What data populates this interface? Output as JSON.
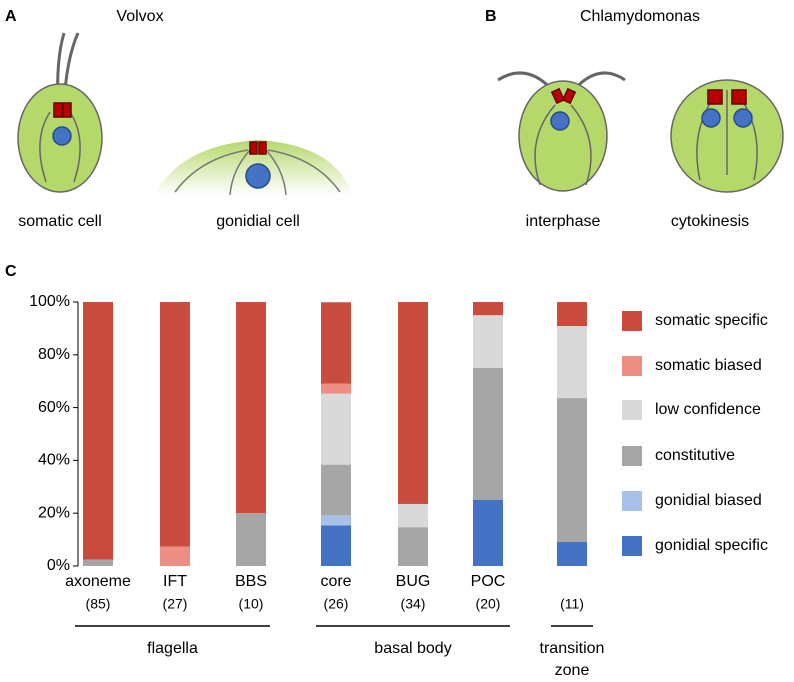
{
  "figure": {
    "panel_a": {
      "label": "A",
      "title": "Volvox",
      "cells": [
        "somatic cell",
        "gonidial cell"
      ]
    },
    "panel_b": {
      "label": "B",
      "title": "Chlamydomonas",
      "cells": [
        "interphase",
        "cytokinesis"
      ]
    },
    "panel_c_label": "C"
  },
  "chart_data": {
    "type": "bar",
    "stacked": true,
    "categories": [
      "axoneme",
      "IFT",
      "BBS",
      "core",
      "BUG",
      "POC",
      null
    ],
    "counts": [
      "(85)",
      "(27)",
      "(10)",
      "(26)",
      "(34)",
      "(20)",
      "(11)"
    ],
    "groups": [
      "flagella",
      "basal body",
      "transition zone"
    ],
    "series": [
      {
        "name": "gonidial specific",
        "color": "#4472c4",
        "values": [
          0,
          0,
          0,
          15.4,
          0,
          25,
          9.1
        ]
      },
      {
        "name": "gonidial biased",
        "color": "#a9c0e8",
        "values": [
          0,
          0,
          0,
          3.8,
          0,
          0,
          0
        ]
      },
      {
        "name": "constitutive",
        "color": "#a6a6a6",
        "values": [
          2.4,
          0,
          20,
          19.2,
          14.7,
          50,
          54.5
        ]
      },
      {
        "name": "low confidence",
        "color": "#d9d9d9",
        "values": [
          0,
          0,
          0,
          26.9,
          8.8,
          20,
          27.3
        ]
      },
      {
        "name": "somatic biased",
        "color": "#ec8e84",
        "values": [
          0,
          7.4,
          0,
          3.8,
          0,
          0,
          0
        ]
      },
      {
        "name": "somatic specific",
        "color": "#c94c3e",
        "values": [
          97.6,
          92.6,
          80,
          30.8,
          76.5,
          5,
          9.1
        ]
      }
    ],
    "ylim": [
      0,
      100
    ],
    "yticks": [
      {
        "value": 0,
        "label": "0%"
      },
      {
        "value": 20,
        "label": "20%"
      },
      {
        "value": 40,
        "label": "40%"
      },
      {
        "value": 60,
        "label": "60%"
      },
      {
        "value": 80,
        "label": "80%"
      },
      {
        "value": 100,
        "label": "100%"
      }
    ],
    "legend": "right"
  }
}
